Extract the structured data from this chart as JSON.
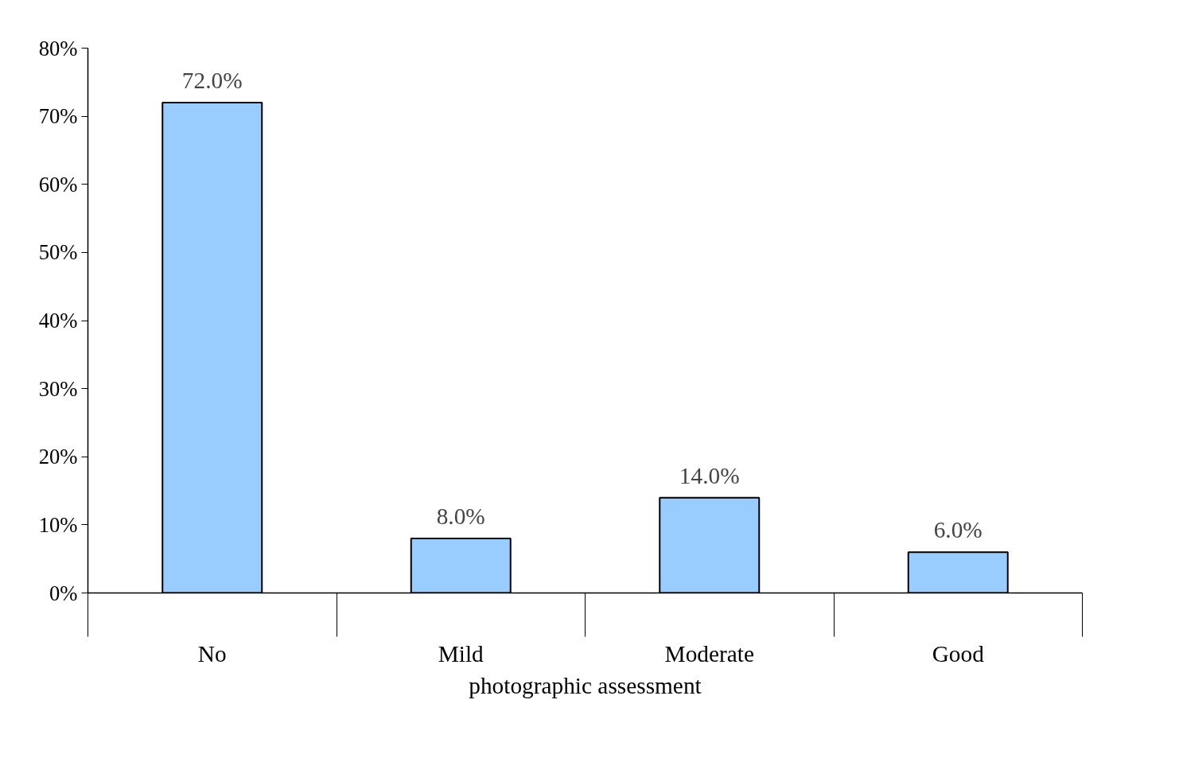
{
  "chart_data": {
    "type": "bar",
    "xlabel": "photographic assessment",
    "categories": [
      "No",
      "Mild",
      "Moderate",
      "Good"
    ],
    "values": [
      72,
      8,
      14,
      6
    ],
    "color": "#99ccff",
    "value_labels": [
      "72.0%",
      "8.0%",
      "14.0%",
      "6.0%"
    ],
    "ylim": [
      0,
      80
    ],
    "yticks": [
      {
        "value": 0,
        "label": "0%"
      },
      {
        "value": 10,
        "label": "10%"
      },
      {
        "value": 20,
        "label": "20%"
      },
      {
        "value": 30,
        "label": "30%"
      },
      {
        "value": 40,
        "label": "40%"
      },
      {
        "value": 50,
        "label": "50%"
      },
      {
        "value": 60,
        "label": "60%"
      },
      {
        "value": 70,
        "label": "70%"
      },
      {
        "value": 80,
        "label": "80%"
      }
    ],
    "grid": false
  }
}
